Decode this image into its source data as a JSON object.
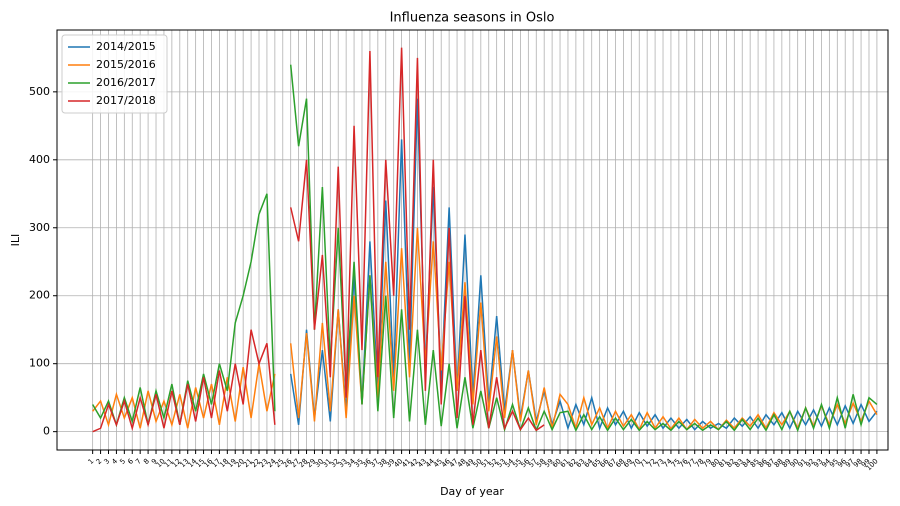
{
  "chart_data": {
    "type": "line",
    "title": "Influenza seasons in Oslo",
    "x_label": "Day of year",
    "y_label": "ILI",
    "x": [
      1,
      2,
      3,
      4,
      5,
      6,
      7,
      8,
      9,
      10,
      11,
      12,
      13,
      14,
      15,
      16,
      17,
      18,
      19,
      20,
      21,
      22,
      23,
      24,
      25,
      26,
      27,
      28,
      29,
      30,
      31,
      32,
      33,
      34,
      35,
      36,
      37,
      38,
      39,
      40,
      41,
      42,
      43,
      44,
      45,
      46,
      47,
      48,
      49,
      50,
      51,
      52,
      53,
      54,
      55,
      56,
      57,
      58,
      59,
      60,
      61,
      62,
      63,
      64,
      65,
      66,
      67,
      68,
      69,
      70,
      71,
      72,
      73,
      74,
      75,
      76,
      77,
      78,
      79,
      80,
      81,
      82,
      83,
      84,
      85,
      86,
      87,
      88,
      89,
      90,
      91,
      92,
      93,
      94,
      95,
      96,
      97,
      98,
      99,
      100
    ],
    "xlim": [
      -3.5,
      101.4
    ],
    "ylim": [
      -27,
      591
    ],
    "yticks": [
      0,
      100,
      200,
      300,
      400,
      500
    ],
    "grid": true,
    "legend": "upper left",
    "series": [
      {
        "name": "2014/2015",
        "color": "#1f77b4",
        "values": [
          null,
          null,
          null,
          null,
          null,
          null,
          null,
          null,
          null,
          null,
          null,
          null,
          null,
          null,
          null,
          null,
          null,
          null,
          null,
          null,
          null,
          null,
          null,
          null,
          null,
          85,
          10,
          150,
          20,
          120,
          15,
          180,
          30,
          230,
          40,
          280,
          60,
          340,
          80,
          430,
          100,
          490,
          90,
          360,
          70,
          330,
          60,
          290,
          50,
          230,
          40,
          170,
          30,
          120,
          20,
          90,
          15,
          60,
          10,
          45,
          5,
          40,
          10,
          50,
          5,
          35,
          10,
          30,
          5,
          28,
          8,
          25,
          5,
          20,
          5,
          18,
          3,
          15,
          5,
          12,
          5,
          20,
          8,
          22,
          5,
          25,
          10,
          28,
          5,
          30,
          10,
          32,
          8,
          35,
          10,
          38,
          12,
          40,
          15,
          30
        ]
      },
      {
        "name": "2015/2016",
        "color": "#ff7f0e",
        "values": [
          30,
          45,
          10,
          55,
          20,
          50,
          5,
          60,
          15,
          45,
          10,
          55,
          5,
          65,
          20,
          70,
          10,
          80,
          15,
          95,
          20,
          100,
          30,
          85,
          null,
          130,
          20,
          145,
          15,
          160,
          30,
          180,
          20,
          200,
          40,
          230,
          50,
          250,
          60,
          270,
          80,
          300,
          100,
          280,
          90,
          250,
          60,
          220,
          40,
          190,
          30,
          140,
          20,
          120,
          15,
          90,
          10,
          65,
          5,
          55,
          40,
          5,
          50,
          10,
          35,
          5,
          30,
          8,
          25,
          3,
          28,
          5,
          22,
          4,
          20,
          3,
          18,
          5,
          15,
          3,
          17,
          5,
          20,
          8,
          25,
          5,
          28,
          10,
          30,
          5,
          35,
          8,
          38,
          10,
          40,
          12,
          42,
          15,
          45,
          25
        ]
      },
      {
        "name": "2016/2017",
        "color": "#2ca02c",
        "values": [
          40,
          20,
          45,
          10,
          50,
          15,
          65,
          10,
          60,
          20,
          70,
          10,
          75,
          30,
          85,
          40,
          100,
          60,
          160,
          200,
          250,
          320,
          350,
          30,
          null,
          540,
          420,
          490,
          150,
          360,
          100,
          300,
          60,
          250,
          40,
          230,
          30,
          200,
          20,
          180,
          15,
          150,
          10,
          120,
          8,
          100,
          5,
          80,
          5,
          60,
          5,
          50,
          3,
          40,
          3,
          35,
          2,
          30,
          3,
          28,
          30,
          2,
          25,
          3,
          22,
          2,
          20,
          3,
          18,
          2,
          15,
          3,
          12,
          2,
          15,
          3,
          12,
          2,
          10,
          3,
          15,
          2,
          18,
          3,
          20,
          2,
          25,
          3,
          30,
          2,
          35,
          5,
          40,
          5,
          50,
          5,
          55,
          10,
          50,
          40
        ]
      },
      {
        "name": "2017/2018",
        "color": "#d62728",
        "values": [
          0,
          5,
          40,
          10,
          45,
          5,
          50,
          10,
          55,
          5,
          60,
          10,
          70,
          15,
          80,
          20,
          90,
          30,
          100,
          40,
          150,
          100,
          130,
          10,
          null,
          330,
          280,
          400,
          150,
          260,
          80,
          390,
          50,
          450,
          120,
          560,
          80,
          400,
          200,
          565,
          150,
          550,
          60,
          400,
          40,
          300,
          20,
          200,
          10,
          120,
          5,
          80,
          5,
          30,
          3,
          20,
          2,
          10,
          null,
          null,
          null,
          null,
          null,
          null,
          null,
          null,
          null,
          null,
          null,
          null,
          null,
          null,
          null,
          null,
          null,
          null,
          null,
          null,
          null,
          null,
          null,
          null,
          null,
          null,
          null,
          null,
          null,
          null,
          null,
          null,
          null,
          null,
          null,
          null,
          null,
          null,
          null,
          null,
          null,
          null
        ]
      }
    ]
  }
}
